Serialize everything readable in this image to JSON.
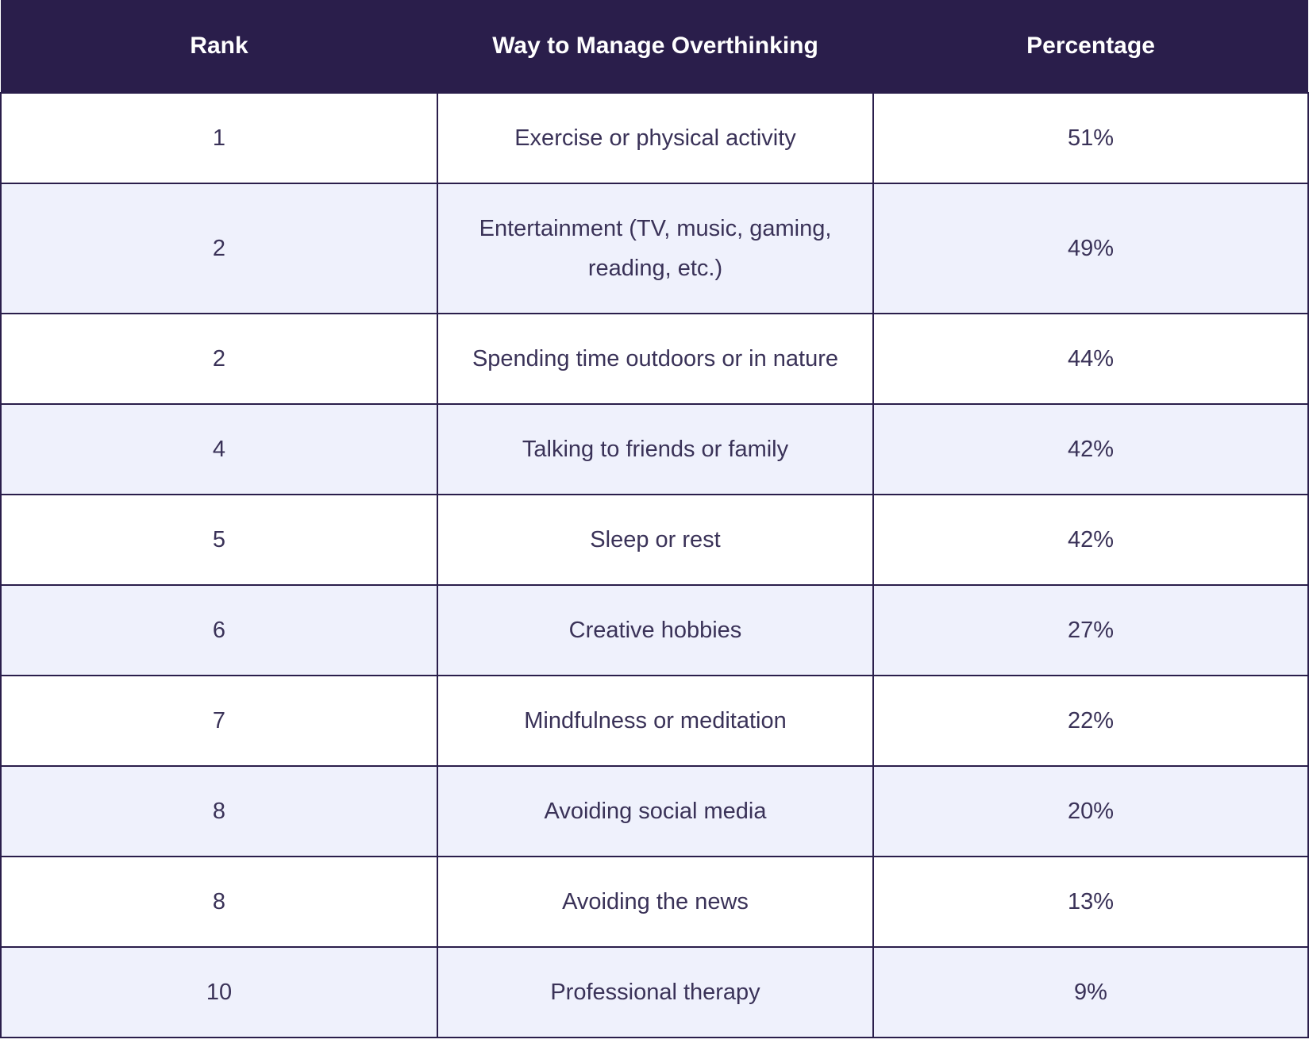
{
  "table": {
    "headers": [
      "Rank",
      "Way to Manage Overthinking",
      "Percentage"
    ],
    "rows": [
      [
        "1",
        "Exercise or physical activity",
        "51%"
      ],
      [
        "2",
        "Entertainment (TV, music, gaming, reading, etc.)",
        "49%"
      ],
      [
        "2",
        "Spending time outdoors or in nature",
        "44%"
      ],
      [
        "4",
        "Talking to friends or family",
        "42%"
      ],
      [
        "5",
        "Sleep or rest",
        "42%"
      ],
      [
        "6",
        "Creative hobbies",
        "27%"
      ],
      [
        "7",
        "Mindfulness or meditation",
        "22%"
      ],
      [
        "8",
        "Avoiding social media",
        "20%"
      ],
      [
        "8",
        "Avoiding the news",
        "13%"
      ],
      [
        "10",
        "Professional therapy",
        "9%"
      ]
    ]
  },
  "colors": {
    "header_bg": "#2a1e4b",
    "alt_row_bg": "#eff1fc",
    "border": "#2a1e4b"
  }
}
